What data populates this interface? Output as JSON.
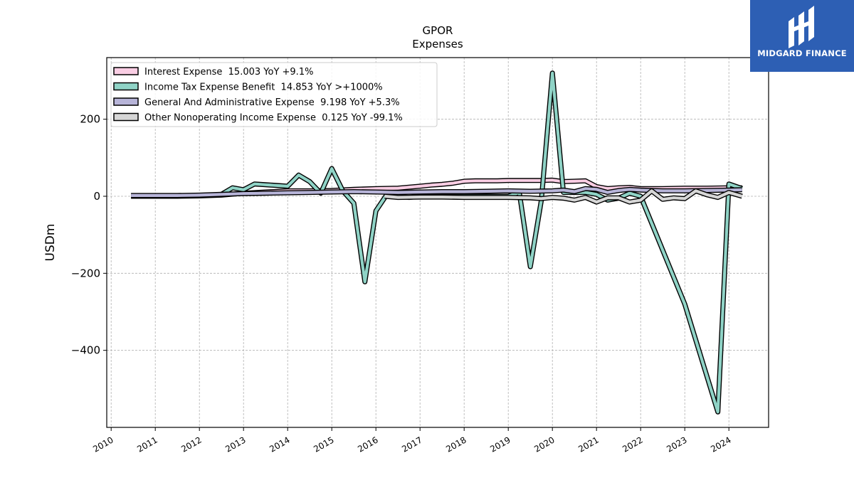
{
  "chart_data": {
    "type": "line",
    "title": "GPOR",
    "subtitle": "Expenses",
    "ylabel": "USDm",
    "xlabel": "",
    "xlim": [
      2009.9,
      2024.9
    ],
    "ylim": [
      -600,
      360
    ],
    "x_ticks": [
      "2010",
      "2011",
      "2012",
      "2013",
      "2014",
      "2015",
      "2016",
      "2017",
      "2018",
      "2019",
      "2020",
      "2021",
      "2022",
      "2023",
      "2024"
    ],
    "y_ticks": [
      200,
      0,
      -200,
      -400
    ],
    "y_tick_labels": [
      "200",
      "0",
      "−200",
      "−400"
    ],
    "grid": true,
    "legend_position": "top-left",
    "series": [
      {
        "name": "Interest Expense  15.003 YoY +9.1%",
        "color": "#f9cde3",
        "x": [
          2010.45,
          2011,
          2011.5,
          2012,
          2012.5,
          2013,
          2013.5,
          2014,
          2014.5,
          2015,
          2015.5,
          2016,
          2016.5,
          2017,
          2017.25,
          2017.5,
          2017.75,
          2018,
          2018.25,
          2018.5,
          2018.75,
          2019,
          2019.25,
          2019.5,
          2019.75,
          2020,
          2020.25,
          2020.5,
          2020.75,
          2021,
          2021.25,
          2021.5,
          2021.75,
          2022,
          2022.5,
          2023,
          2023.5,
          2024,
          2024.3
        ],
        "values": [
          0,
          0,
          0,
          1,
          3,
          8,
          11,
          14,
          14,
          15,
          18,
          20,
          21,
          26,
          29,
          31,
          34,
          39,
          40,
          40,
          40,
          41,
          41,
          41,
          41,
          42,
          38,
          39,
          40,
          25,
          20,
          22,
          23,
          20,
          20,
          21,
          21,
          22,
          22
        ]
      },
      {
        "name": "Income Tax Expense Benefit  14.853 YoY >+1000%",
        "color": "#8fd3c6",
        "x": [
          2012.5,
          2012.75,
          2013,
          2013.25,
          2013.5,
          2013.75,
          2014,
          2014.25,
          2014.5,
          2014.75,
          2015,
          2015.25,
          2015.5,
          2015.75,
          2016,
          2016.25,
          2016.5,
          2016.75,
          2017,
          2017.5,
          2018,
          2018.5,
          2019,
          2019.25,
          2019.5,
          2019.75,
          2020,
          2020.25,
          2020.5,
          2020.75,
          2021,
          2021.25,
          2021.5,
          2021.75,
          2022,
          2023,
          2023.75,
          2024,
          2024.3
        ],
        "values": [
          5,
          22,
          17,
          32,
          30,
          28,
          26,
          55,
          38,
          8,
          72,
          14,
          -18,
          -222,
          -38,
          5,
          0,
          -3,
          0,
          0,
          0,
          0,
          0,
          10,
          -183,
          -10,
          320,
          10,
          10,
          10,
          5,
          -10,
          -5,
          8,
          0,
          -280,
          -560,
          32,
          20
        ]
      },
      {
        "name": "General And Administrative Expense  9.198 YoY +5.3%",
        "color": "#b7b4d8",
        "x": [
          2010.45,
          2011,
          2011.5,
          2012,
          2012.5,
          2013,
          2013.5,
          2014,
          2014.5,
          2015,
          2015.5,
          2016,
          2016.5,
          2017,
          2017.5,
          2018,
          2018.5,
          2019,
          2019.5,
          2020,
          2020.25,
          2020.5,
          2020.75,
          2021,
          2021.25,
          2021.5,
          2021.75,
          2022,
          2022.5,
          2023,
          2023.5,
          2024,
          2024.3
        ],
        "values": [
          2,
          2,
          2,
          3,
          5,
          7,
          8,
          9,
          10,
          11,
          12,
          11,
          10,
          11,
          12,
          12,
          13,
          14,
          13,
          14,
          16,
          12,
          20,
          18,
          10,
          15,
          18,
          16,
          14,
          14,
          15,
          16,
          17
        ]
      },
      {
        "name": "Other Nonoperating Income Expense  0.125 YoY -99.1%",
        "color": "#d6d6d6",
        "x": [
          2016.2,
          2016.5,
          2017,
          2017.5,
          2018,
          2018.5,
          2019,
          2019.5,
          2019.75,
          2020,
          2020.25,
          2020.5,
          2020.75,
          2021,
          2021.25,
          2021.5,
          2021.75,
          2022,
          2022.25,
          2022.5,
          2022.75,
          2023,
          2023.25,
          2023.5,
          2023.75,
          2024,
          2024.3
        ],
        "values": [
          0,
          -3,
          -2,
          -2,
          -3,
          -3,
          -3,
          -4,
          -6,
          -3,
          -5,
          -10,
          -3,
          -15,
          -4,
          -4,
          -15,
          -10,
          14,
          -8,
          -4,
          -6,
          14,
          4,
          -3,
          10,
          0
        ]
      }
    ]
  },
  "logo": {
    "text": "MIDGARD FINANCE",
    "color": "#2d5fb4"
  }
}
